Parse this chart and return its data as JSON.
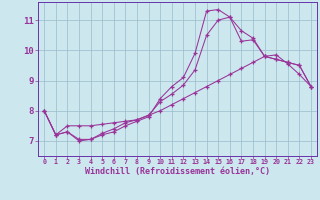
{
  "xlabel": "Windchill (Refroidissement éolien,°C)",
  "background_color": "#cce8ee",
  "line_color": "#993399",
  "grid_color": "#99bbcc",
  "spine_color": "#6633aa",
  "xlim": [
    -0.5,
    23.5
  ],
  "ylim": [
    6.5,
    11.6
  ],
  "yticks": [
    7,
    8,
    9,
    10,
    11
  ],
  "xticks": [
    0,
    1,
    2,
    3,
    4,
    5,
    6,
    7,
    8,
    9,
    10,
    11,
    12,
    13,
    14,
    15,
    16,
    17,
    18,
    19,
    20,
    21,
    22,
    23
  ],
  "x": [
    0,
    1,
    2,
    3,
    4,
    5,
    6,
    7,
    8,
    9,
    10,
    11,
    12,
    13,
    14,
    15,
    16,
    17,
    18,
    19,
    20,
    21,
    22,
    23
  ],
  "series1": [
    8.0,
    7.2,
    7.3,
    7.0,
    7.05,
    7.2,
    7.3,
    7.5,
    7.65,
    7.8,
    8.4,
    8.8,
    9.1,
    9.9,
    11.3,
    11.35,
    11.1,
    10.3,
    10.35,
    9.8,
    9.7,
    9.6,
    9.5,
    8.8
  ],
  "series2": [
    8.0,
    7.2,
    7.3,
    7.05,
    7.05,
    7.25,
    7.4,
    7.6,
    7.7,
    7.85,
    8.3,
    8.55,
    8.85,
    9.35,
    10.5,
    11.0,
    11.1,
    10.65,
    10.4,
    9.8,
    9.7,
    9.6,
    9.5,
    8.8
  ],
  "series3": [
    8.0,
    7.2,
    7.5,
    7.5,
    7.5,
    7.55,
    7.6,
    7.65,
    7.7,
    7.85,
    8.0,
    8.2,
    8.4,
    8.6,
    8.8,
    9.0,
    9.2,
    9.4,
    9.6,
    9.8,
    9.85,
    9.55,
    9.2,
    8.8
  ]
}
